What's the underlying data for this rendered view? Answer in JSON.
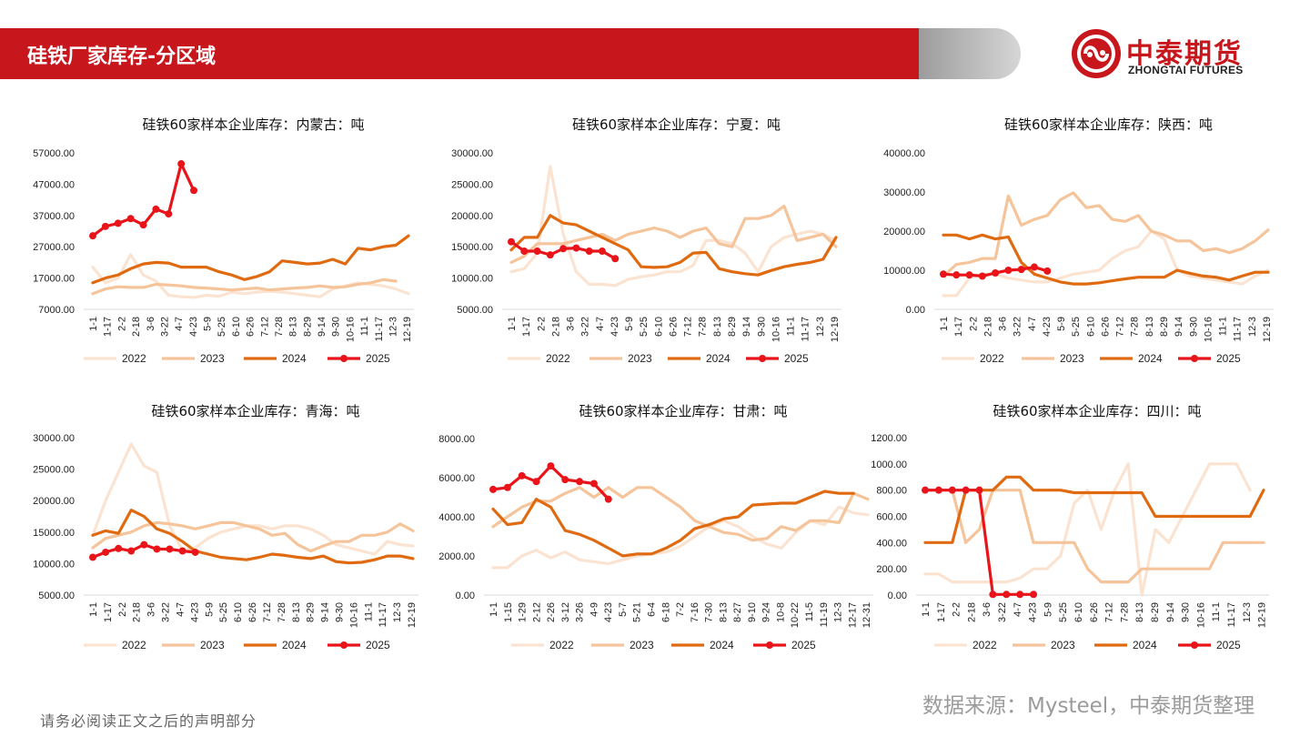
{
  "header": {
    "title": "硅铁厂家库存-分区域"
  },
  "logo": {
    "cn": "中泰期货",
    "en": "ZHONGTAI FUTURES"
  },
  "footer": {
    "source": "数据来源：Mysteel，中泰期货整理",
    "disclaimer": "请务必阅读正文之后的声明部分"
  },
  "colors": {
    "brand": "#c8161d",
    "s2022": "#fbe3d2",
    "s2023": "#f5c49a",
    "s2024": "#e06a10",
    "s2025": "#e8141a"
  },
  "chart_data": [
    {
      "type": "line",
      "title": "硅铁60家样本企业库存：内蒙古：吨",
      "ylim": [
        7000,
        57000
      ],
      "yticks": [
        "7000.00",
        "17000.00",
        "27000.00",
        "37000.00",
        "47000.00",
        "57000.00"
      ],
      "xticks": [
        "1-1",
        "1-17",
        "2-2",
        "2-18",
        "3-6",
        "3-22",
        "4-7",
        "4-23",
        "5-9",
        "5-25",
        "6-10",
        "6-26",
        "7-12",
        "7-28",
        "8-13",
        "8-29",
        "9-14",
        "9-30",
        "10-16",
        "11-1",
        "11-17",
        "12-3",
        "12-19"
      ],
      "series": [
        {
          "name": "2022",
          "values": [
            20500,
            15500,
            17000,
            24500,
            18000,
            16000,
            11500,
            11000,
            10800,
            11500,
            11200,
            12500,
            12000,
            12500,
            12800,
            12500,
            12000,
            11500,
            11000,
            13500,
            14500,
            15500,
            15000,
            14500,
            13500,
            12000
          ]
        },
        {
          "name": "2023",
          "values": [
            12000,
            13500,
            14200,
            14000,
            14000,
            15000,
            14800,
            14500,
            14000,
            13800,
            13500,
            13200,
            13500,
            13800,
            13200,
            13500,
            13800,
            14000,
            14500,
            14000,
            14200,
            15000,
            15500,
            16500,
            16000
          ]
        },
        {
          "name": "2024",
          "values": [
            15500,
            17000,
            18000,
            20000,
            21500,
            22000,
            21800,
            20500,
            20500,
            20500,
            19000,
            18000,
            16500,
            17500,
            19000,
            22500,
            22000,
            21500,
            21800,
            23000,
            21500,
            26500,
            26000,
            27000,
            27500,
            30500
          ]
        },
        {
          "name": "2025",
          "values": [
            30500,
            33500,
            34500,
            36000,
            34000,
            39000,
            37500,
            53500,
            45000
          ]
        }
      ]
    },
    {
      "type": "line",
      "title": "硅铁60家样本企业库存：宁夏：吨",
      "ylim": [
        5000,
        30000
      ],
      "yticks": [
        "5000.00",
        "10000.00",
        "15000.00",
        "20000.00",
        "25000.00",
        "30000.00"
      ],
      "xticks": [
        "1-1",
        "1-17",
        "2-2",
        "2-18",
        "3-6",
        "3-22",
        "4-7",
        "4-23",
        "5-9",
        "5-25",
        "6-10",
        "6-26",
        "7-12",
        "7-28",
        "8-13",
        "8-29",
        "9-14",
        "9-30",
        "10-16",
        "11-1",
        "11-17",
        "12-3",
        "12-19"
      ],
      "series": [
        {
          "name": "2022",
          "values": [
            11000,
            11500,
            14000,
            27800,
            17000,
            11000,
            9000,
            9000,
            8800,
            9800,
            10200,
            10500,
            11000,
            11000,
            12000,
            16000,
            16000,
            15500,
            14000,
            11000,
            15000,
            16500,
            17000,
            17500,
            17000,
            16000
          ]
        },
        {
          "name": "2023",
          "values": [
            12500,
            13500,
            15500,
            15500,
            15500,
            16000,
            16500,
            17000,
            16000,
            17000,
            17500,
            18000,
            17500,
            16500,
            17500,
            18000,
            15500,
            15000,
            19500,
            19500,
            20000,
            21500,
            16000,
            16500,
            17000,
            15000
          ]
        },
        {
          "name": "2024",
          "values": [
            14500,
            16500,
            16500,
            20000,
            18800,
            18500,
            17500,
            16500,
            15500,
            14500,
            11800,
            11700,
            11800,
            12500,
            14000,
            14100,
            11500,
            11000,
            10700,
            10500,
            11200,
            11800,
            12200,
            12500,
            13000,
            16500
          ]
        },
        {
          "name": "2025",
          "values": [
            15800,
            14300,
            14300,
            13700,
            14700,
            14800,
            14300,
            14300,
            13100
          ]
        }
      ]
    },
    {
      "type": "line",
      "title": "硅铁60家样本企业库存：陕西：吨",
      "ylim": [
        0,
        40000
      ],
      "yticks": [
        "0.00",
        "10000.00",
        "20000.00",
        "30000.00",
        "40000.00"
      ],
      "xticks": [
        "1-1",
        "1-17",
        "2-2",
        "2-18",
        "3-6",
        "3-22",
        "4-7",
        "4-23",
        "5-9",
        "5-25",
        "6-10",
        "6-26",
        "7-12",
        "7-28",
        "8-13",
        "8-29",
        "9-14",
        "9-30",
        "10-16",
        "11-1",
        "11-17",
        "12-3",
        "12-19"
      ],
      "series": [
        {
          "name": "2022",
          "values": [
            3500,
            3500,
            8000,
            9000,
            9000,
            8000,
            7500,
            7000,
            7000,
            8000,
            9000,
            9500,
            10000,
            13000,
            15000,
            16000,
            20000,
            18000,
            10000,
            8500,
            8000,
            7500,
            7000,
            6500,
            8500,
            10000
          ]
        },
        {
          "name": "2023",
          "values": [
            8500,
            11500,
            12000,
            13000,
            13000,
            29000,
            21500,
            23000,
            24000,
            28000,
            29800,
            26000,
            26500,
            23000,
            22500,
            24000,
            20000,
            19000,
            17500,
            17500,
            15000,
            15500,
            14500,
            15500,
            17500,
            20300
          ]
        },
        {
          "name": "2024",
          "values": [
            19000,
            19000,
            18000,
            19000,
            18000,
            18500,
            12000,
            9000,
            8000,
            7000,
            6500,
            6500,
            6800,
            7300,
            7800,
            8200,
            8200,
            8200,
            10000,
            9200,
            8500,
            8200,
            7500,
            8500,
            9500,
            9500
          ]
        },
        {
          "name": "2025",
          "values": [
            9000,
            8800,
            8800,
            8500,
            9300,
            10000,
            10200,
            10800,
            9800
          ]
        }
      ]
    },
    {
      "type": "line",
      "title": "硅铁60家样本企业库存：青海：吨",
      "ylim": [
        5000,
        30000
      ],
      "yticks": [
        "5000.00",
        "10000.00",
        "15000.00",
        "20000.00",
        "25000.00",
        "30000.00"
      ],
      "xticks": [
        "1-1",
        "1-17",
        "2-2",
        "2-18",
        "3-6",
        "3-22",
        "4-7",
        "4-23",
        "5-9",
        "5-25",
        "6-10",
        "6-26",
        "7-12",
        "7-28",
        "8-13",
        "8-29",
        "9-14",
        "9-30",
        "10-16",
        "11-1",
        "11-17",
        "12-3",
        "12-19"
      ],
      "series": [
        {
          "name": "2022",
          "values": [
            14500,
            20000,
            24500,
            29000,
            25500,
            24500,
            16000,
            12000,
            12500,
            14000,
            15000,
            15500,
            16000,
            16000,
            15500,
            16000,
            16000,
            15500,
            14500,
            13000,
            12500,
            12000,
            11500,
            13500,
            13000,
            12800
          ]
        },
        {
          "name": "2023",
          "values": [
            12500,
            14000,
            14500,
            15000,
            16000,
            16500,
            16300,
            16000,
            15500,
            16000,
            16500,
            16500,
            16000,
            15500,
            14500,
            14800,
            13000,
            12000,
            12800,
            13500,
            13500,
            14500,
            14500,
            15000,
            16300,
            15200
          ]
        },
        {
          "name": "2024",
          "values": [
            14500,
            15200,
            14800,
            18500,
            17500,
            15500,
            14800,
            13500,
            12000,
            11500,
            11000,
            10800,
            10600,
            11000,
            11500,
            11300,
            11000,
            10800,
            11200,
            10300,
            10100,
            10200,
            10600,
            11200,
            11200,
            10800
          ]
        },
        {
          "name": "2025",
          "values": [
            11000,
            11800,
            12400,
            12000,
            13000,
            12300,
            12300,
            12000,
            11800
          ]
        }
      ]
    },
    {
      "type": "line",
      "title": "硅铁60家样本企业库存：甘肃：吨",
      "ylim": [
        0,
        8000
      ],
      "yticks": [
        "0.00",
        "2000.00",
        "4000.00",
        "6000.00",
        "8000.00"
      ],
      "xticks": [
        "1-1",
        "1-15",
        "1-29",
        "2-12",
        "2-26",
        "3-12",
        "3-26",
        "4-9",
        "4-23",
        "5-7",
        "5-21",
        "6-4",
        "6-18",
        "7-2",
        "7-16",
        "7-30",
        "8-13",
        "8-27",
        "9-10",
        "9-24",
        "10-8",
        "10-22",
        "11-5",
        "11-19",
        "12-3",
        "12-17",
        "12-31"
      ],
      "series": [
        {
          "name": "2022",
          "values": [
            1400,
            1400,
            2000,
            2300,
            1900,
            2200,
            1800,
            1700,
            1600,
            1800,
            2000,
            2100,
            2200,
            2500,
            3000,
            3500,
            3800,
            3500,
            3000,
            2600,
            2400,
            3200,
            3800,
            3600,
            4500,
            4200,
            4100
          ]
        },
        {
          "name": "2023",
          "values": [
            3500,
            4000,
            4500,
            4800,
            4800,
            5200,
            5500,
            5000,
            5500,
            5000,
            5500,
            5500,
            5000,
            4500,
            3800,
            3500,
            3200,
            3100,
            2800,
            2900,
            3500,
            3300,
            3800,
            3800,
            3700,
            5200,
            4900
          ]
        },
        {
          "name": "2024",
          "values": [
            4400,
            3600,
            3700,
            4900,
            4500,
            3300,
            3100,
            2800,
            2400,
            2000,
            2100,
            2100,
            2400,
            2800,
            3400,
            3600,
            3900,
            4000,
            4600,
            4650,
            4700,
            4700,
            5000,
            5300,
            5200,
            5200
          ]
        },
        {
          "name": "2025",
          "values": [
            5400,
            5500,
            6100,
            5800,
            6600,
            5900,
            5800,
            5700,
            4900
          ]
        }
      ]
    },
    {
      "type": "line",
      "title": "硅铁60家样本企业库存：四川：吨",
      "ylim": [
        0,
        1200
      ],
      "yticks": [
        "0.00",
        "200.00",
        "400.00",
        "600.00",
        "800.00",
        "1000.00",
        "1200.00"
      ],
      "xticks": [
        "1-1",
        "1-17",
        "2-2",
        "2-18",
        "3-6",
        "3-22",
        "4-7",
        "4-23",
        "5-9",
        "5-25",
        "6-10",
        "6-26",
        "7-12",
        "7-28",
        "8-13",
        "8-29",
        "9-14",
        "9-30",
        "10-16",
        "11-1",
        "11-17",
        "12-3",
        "12-19"
      ],
      "series": [
        {
          "name": "2022",
          "values": [
            160,
            160,
            100,
            100,
            100,
            100,
            100,
            130,
            200,
            200,
            300,
            700,
            800,
            500,
            800,
            1000,
            0,
            500,
            400,
            600,
            800,
            1000,
            1000,
            1000,
            800
          ]
        },
        {
          "name": "2023",
          "values": [
            800,
            800,
            800,
            400,
            500,
            800,
            800,
            800,
            400,
            400,
            400,
            400,
            200,
            100,
            100,
            100,
            200,
            200,
            200,
            200,
            200,
            200,
            400,
            400,
            400,
            400
          ]
        },
        {
          "name": "2024",
          "values": [
            400,
            400,
            400,
            800,
            800,
            800,
            900,
            900,
            800,
            800,
            800,
            780,
            780,
            780,
            780,
            780,
            780,
            600,
            600,
            600,
            600,
            600,
            600,
            600,
            600,
            800
          ]
        },
        {
          "name": "2025",
          "values": [
            800,
            800,
            800,
            800,
            800,
            5,
            5,
            5,
            5
          ]
        }
      ]
    }
  ]
}
